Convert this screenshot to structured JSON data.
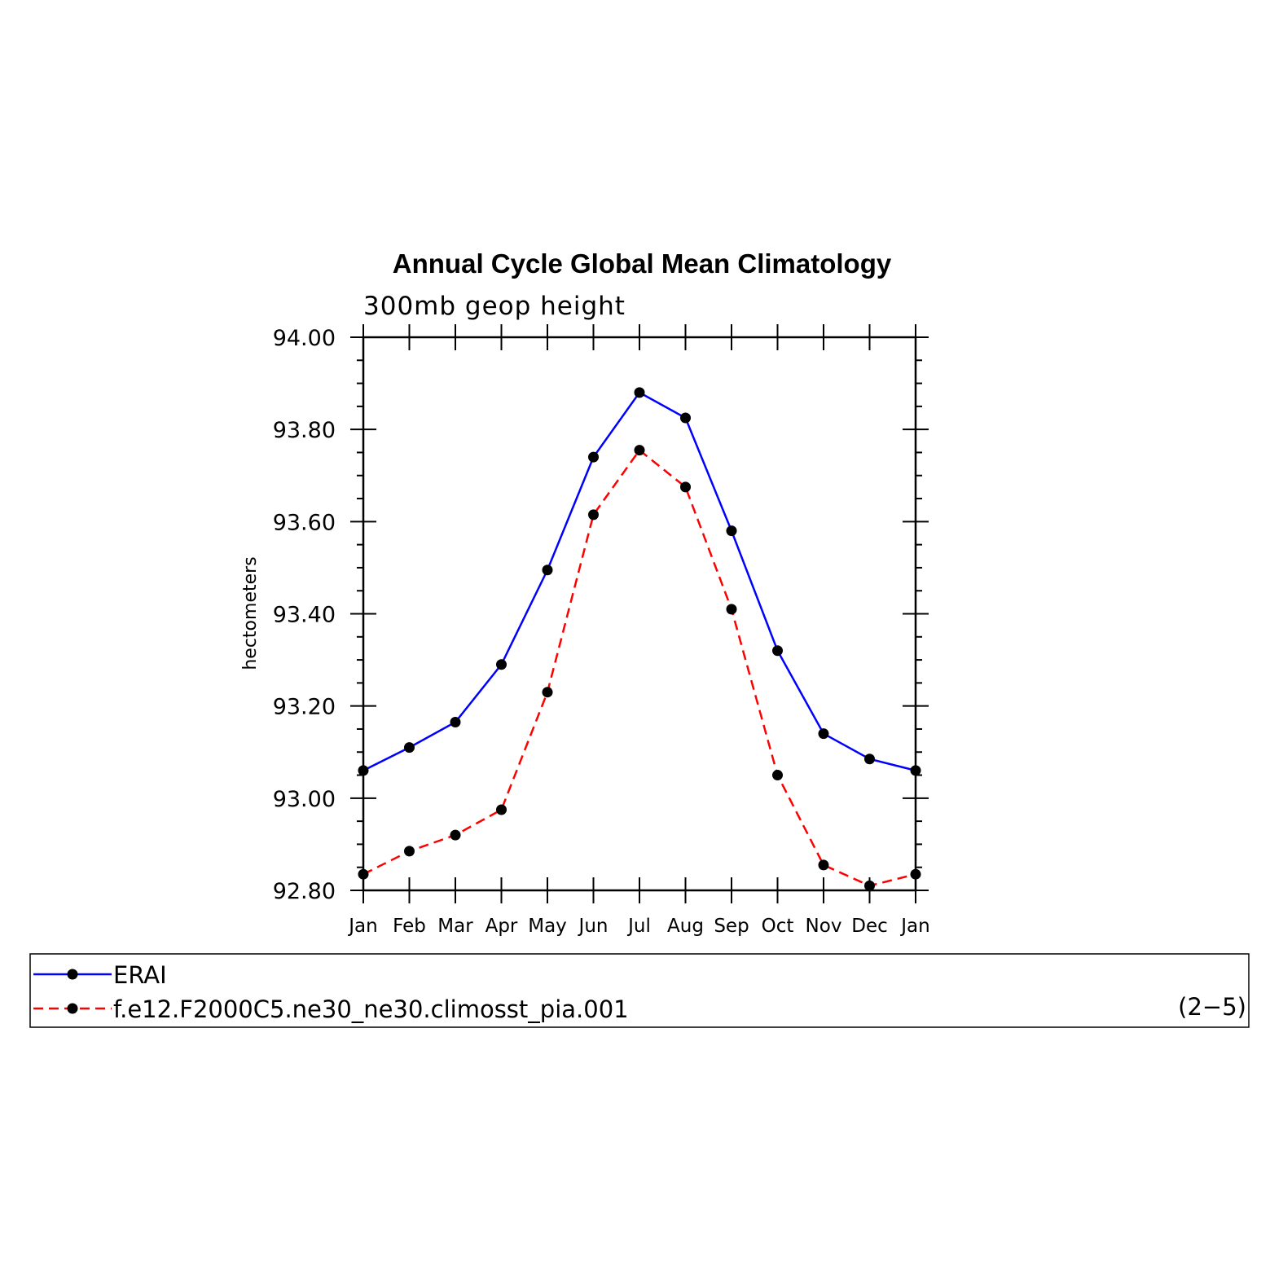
{
  "chart_data": {
    "type": "line",
    "title": "Annual Cycle Global Mean Climatology",
    "subtitle": "300mb geop height",
    "ylabel": "hectometers",
    "xlabel": "",
    "categories": [
      "Jan",
      "Feb",
      "Mar",
      "Apr",
      "May",
      "Jun",
      "Jul",
      "Aug",
      "Sep",
      "Oct",
      "Nov",
      "Dec",
      "Jan"
    ],
    "ylim": [
      92.8,
      94.0
    ],
    "y_ticks": [
      "92.80",
      "93.00",
      "93.20",
      "93.40",
      "93.60",
      "93.80",
      "94.00"
    ],
    "y_tick_values": [
      92.8,
      93.0,
      93.2,
      93.4,
      93.6,
      93.8,
      94.0
    ],
    "grid": false,
    "legend_position": "bottom",
    "series": [
      {
        "name": "ERAI",
        "color": "#0000ff",
        "line_style": "solid",
        "values": [
          93.06,
          93.11,
          93.165,
          93.29,
          93.495,
          93.74,
          93.88,
          93.825,
          93.58,
          93.32,
          93.14,
          93.085,
          93.06
        ]
      },
      {
        "name": "f.e12.F2000C5.ne30_ne30.climosst_pia.001",
        "color": "#ff0000",
        "line_style": "dashed",
        "values": [
          92.835,
          92.885,
          92.92,
          92.975,
          93.23,
          93.615,
          93.755,
          93.675,
          93.41,
          93.05,
          92.855,
          92.81,
          92.835
        ]
      }
    ],
    "annotation": "(2−5)"
  }
}
